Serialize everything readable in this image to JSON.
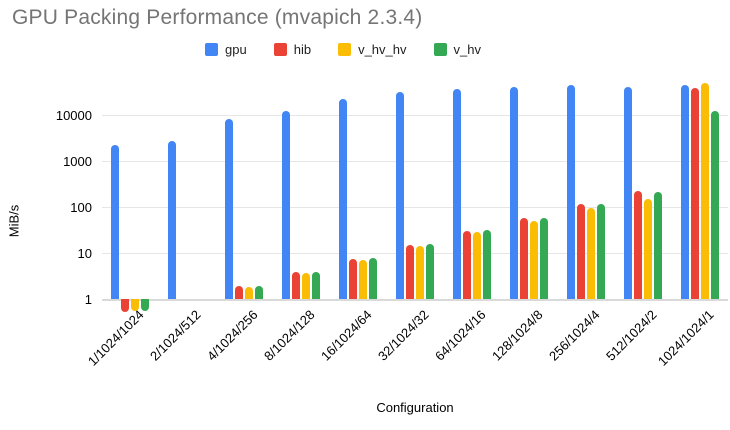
{
  "chart_data": {
    "type": "bar",
    "title": "GPU Packing Performance (mvapich 2.3.4)",
    "xlabel": "Configuration",
    "ylabel": "MiB/s",
    "y_scale": "log",
    "y_ticks": [
      1,
      10,
      100,
      1000,
      10000
    ],
    "ylim": [
      0.5,
      63000
    ],
    "grid": true,
    "legend_position": "top",
    "categories": [
      "1/1024/1024",
      "2/1024/512",
      "4/1024/256",
      "8/1024/128",
      "16/1024/64",
      "32/1024/32",
      "64/1024/16",
      "128/1024/8",
      "256/1024/4",
      "512/1024/2",
      "1024/1024/1"
    ],
    "series": [
      {
        "name": "gpu",
        "color": "#4285f4",
        "values": [
          2200,
          2700,
          8200,
          12500,
          22000,
          31000,
          36000,
          40000,
          45000,
          40000,
          46000
        ]
      },
      {
        "name": "hib",
        "color": "#ea4335",
        "values": [
          0.52,
          null,
          1.9,
          3.8,
          7.5,
          15,
          30,
          58,
          115,
          220,
          38000
        ]
      },
      {
        "name": "v_hv_hv",
        "color": "#fbbc04",
        "values": [
          0.55,
          null,
          1.85,
          3.7,
          7.2,
          14,
          29,
          50,
          95,
          150,
          49000
        ]
      },
      {
        "name": "v_hv",
        "color": "#34a853",
        "values": [
          0.55,
          null,
          1.95,
          3.9,
          7.6,
          15.5,
          31,
          58,
          115,
          210,
          12000
        ]
      }
    ]
  }
}
